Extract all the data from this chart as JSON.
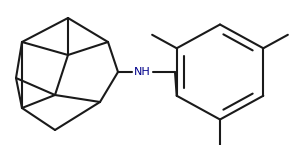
{
  "bg_color": "#ffffff",
  "line_color": "#1a1a1a",
  "line_width": 1.5,
  "nh_color": "#00008b",
  "nh_text": "NH",
  "nh_fontsize": 8.0,
  "fig_width": 3.06,
  "fig_height": 1.45,
  "dpi": 100
}
